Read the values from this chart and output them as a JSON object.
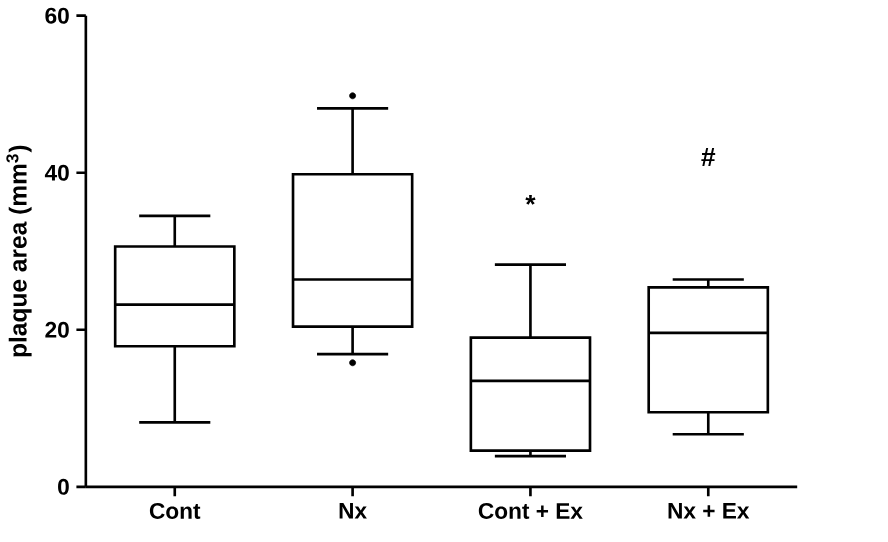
{
  "chart_data": {
    "type": "box",
    "ylabel": "plaque area (mm$^{3}$)",
    "categories": [
      "Cont",
      "Nx",
      "Cont + Ex",
      "Nx + Ex"
    ],
    "boxes": [
      {
        "low": 8.2,
        "q1": 17.9,
        "median": 23.2,
        "q3": 30.6,
        "high": 34.5
      },
      {
        "low": 16.9,
        "q1": 20.4,
        "median": 26.4,
        "q3": 39.8,
        "high": 48.2,
        "outliers": [
          49.8,
          15.8
        ]
      },
      {
        "low": 3.9,
        "q1": 4.6,
        "median": 13.5,
        "q3": 19.0,
        "high": 28.3
      },
      {
        "low": 6.7,
        "q1": 9.5,
        "median": 19.6,
        "q3": 25.4,
        "high": 26.4
      }
    ],
    "annotations": [
      "*",
      "#"
    ],
    "ylim": [
      0,
      60
    ],
    "yticks": [
      0,
      20,
      40,
      60
    ]
  }
}
